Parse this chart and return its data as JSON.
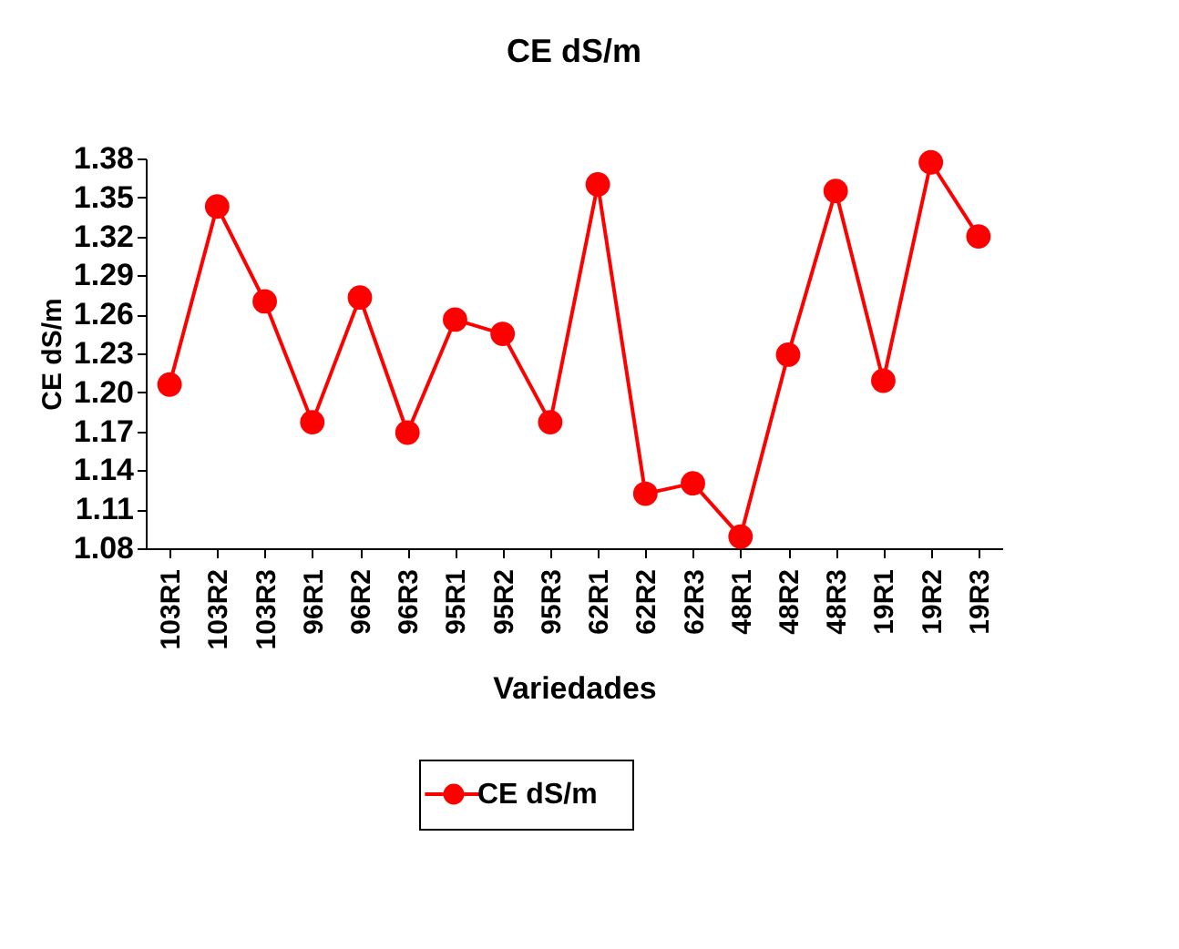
{
  "chart_data": {
    "type": "line",
    "title": "CE   dS/m",
    "xlabel": "Variedades",
    "ylabel": "CE dS/m",
    "categories": [
      "103R1",
      "103R2",
      "103R3",
      "96R1",
      "96R2",
      "96R3",
      "95R1",
      "95R2",
      "95R3",
      "62R1",
      "62R2",
      "62R3",
      "48R1",
      "48R2",
      "48R3",
      "19R1",
      "19R2",
      "19R3"
    ],
    "series": [
      {
        "name": "CE   dS/m",
        "color": "#ff0000",
        "values": [
          1.206,
          1.343,
          1.27,
          1.177,
          1.273,
          1.169,
          1.256,
          1.245,
          1.177,
          1.36,
          1.122,
          1.13,
          1.089,
          1.229,
          1.355,
          1.209,
          1.377,
          1.32
        ]
      }
    ],
    "ylim": [
      1.08,
      1.38
    ],
    "yticks": [
      1.08,
      1.11,
      1.14,
      1.17,
      {
        "value": 1.2,
        "label": "1.20"
      },
      1.23,
      1.26,
      1.29,
      1.32,
      1.35,
      1.38
    ],
    "grid": false,
    "legend": "bottom",
    "marker": "circle",
    "line_style": "solid"
  }
}
